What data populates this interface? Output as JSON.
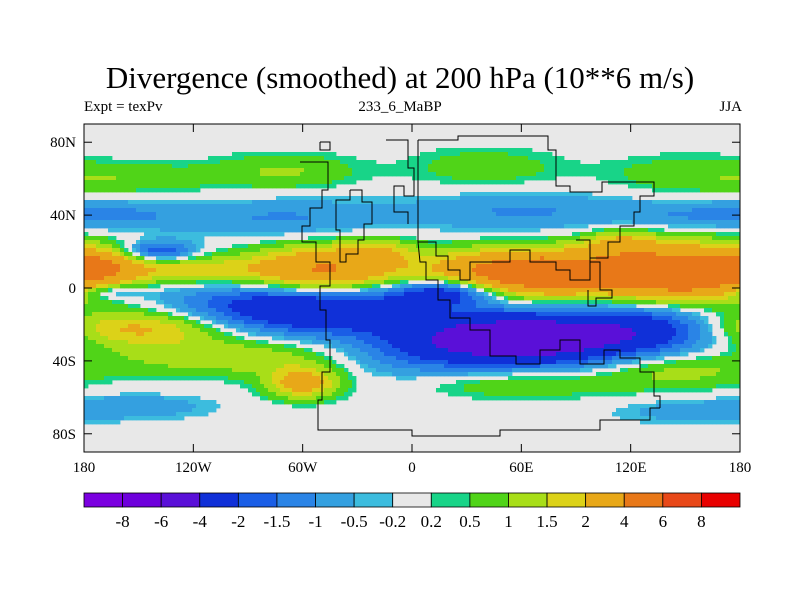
{
  "chart_data": {
    "type": "heatmap",
    "title": "Divergence (smoothed) at 200 hPa (10**6 m/s)",
    "subtitle_left": "Expt = texPv",
    "subtitle_center": "233_6_MaBP",
    "subtitle_right": "JJA",
    "xlim": [
      -180,
      180
    ],
    "ylim": [
      -90,
      90
    ],
    "x_ticks": [
      {
        "value": -180,
        "label": "180"
      },
      {
        "value": -120,
        "label": "120W"
      },
      {
        "value": -60,
        "label": "60W"
      },
      {
        "value": 0,
        "label": "0"
      },
      {
        "value": 60,
        "label": "60E"
      },
      {
        "value": 120,
        "label": "120E"
      },
      {
        "value": 180,
        "label": "180"
      }
    ],
    "y_ticks": [
      {
        "value": 80,
        "label": "80N"
      },
      {
        "value": 40,
        "label": "40N"
      },
      {
        "value": 0,
        "label": "0"
      },
      {
        "value": -40,
        "label": "40S"
      },
      {
        "value": -80,
        "label": "80S"
      }
    ],
    "colorbar": {
      "colors": [
        "#7b00e0",
        "#6e00dc",
        "#5a10d8",
        "#1030d8",
        "#1a5ee6",
        "#2a84e6",
        "#34a0e0",
        "#3cbcde",
        "#e8e8e8",
        "#18d488",
        "#50d418",
        "#a8de18",
        "#dcd218",
        "#e8a818",
        "#e87818",
        "#e84818",
        "#e80000"
      ],
      "labels": [
        "-8",
        "-6",
        "-4",
        "-2",
        "-1.5",
        "-1",
        "-0.5",
        "-0.2",
        "0.2",
        "0.5",
        "1",
        "1.5",
        "2",
        "4",
        "6",
        "8"
      ]
    },
    "field_blobs": [
      {
        "lon": -150,
        "lat": 60,
        "rlon": 32,
        "rlat": 6,
        "v": 0.6
      },
      {
        "lon": -70,
        "lat": 64,
        "rlon": 28,
        "rlat": 7,
        "v": 0.8
      },
      {
        "lon": 40,
        "lat": 66,
        "rlon": 30,
        "rlat": 8,
        "v": 0.6
      },
      {
        "lon": 150,
        "lat": 62,
        "rlon": 32,
        "rlat": 8,
        "v": 0.6
      },
      {
        "lon": -160,
        "lat": 40,
        "rlon": 30,
        "rlat": 6,
        "v": -0.7
      },
      {
        "lon": -70,
        "lat": 38,
        "rlon": 40,
        "rlat": 8,
        "v": -0.8
      },
      {
        "lon": 60,
        "lat": 42,
        "rlon": 45,
        "rlat": 8,
        "v": -0.8
      },
      {
        "lon": 150,
        "lat": 40,
        "rlon": 30,
        "rlat": 6,
        "v": -0.6
      },
      {
        "lon": -140,
        "lat": 20,
        "rlon": 14,
        "rlat": 4,
        "v": -2.0
      },
      {
        "lon": -170,
        "lat": 12,
        "rlon": 18,
        "rlat": 7,
        "v": 1.8
      },
      {
        "lon": -120,
        "lat": 10,
        "rlon": 25,
        "rlat": 5,
        "v": 1.4
      },
      {
        "lon": -50,
        "lat": 8,
        "rlon": 30,
        "rlat": 10,
        "v": 3.5
      },
      {
        "lon": 65,
        "lat": 8,
        "rlon": 38,
        "rlat": 9,
        "v": 4.5
      },
      {
        "lon": 150,
        "lat": 8,
        "rlon": 32,
        "rlat": 11,
        "v": 4.2
      },
      {
        "lon": 115,
        "lat": 25,
        "rlon": 14,
        "rlat": 5,
        "v": 1.4
      },
      {
        "lon": -20,
        "lat": 20,
        "rlon": 14,
        "rlat": 5,
        "v": 1.2
      },
      {
        "lon": -165,
        "lat": -2,
        "rlon": 14,
        "rlat": 3,
        "v": -1.2
      },
      {
        "lon": -55,
        "lat": -10,
        "rlon": 45,
        "rlat": 10,
        "v": -3.5
      },
      {
        "lon": 20,
        "lat": -2,
        "rlon": 20,
        "rlat": 5,
        "v": -2.5
      },
      {
        "lon": 60,
        "lat": -28,
        "rlon": 40,
        "rlat": 10,
        "v": -4.5
      },
      {
        "lon": 130,
        "lat": -22,
        "rlon": 30,
        "rlat": 10,
        "v": -2.0
      },
      {
        "lon": -150,
        "lat": -22,
        "rlon": 35,
        "rlat": 7,
        "v": 2.0
      },
      {
        "lon": -100,
        "lat": -38,
        "rlon": 45,
        "rlat": 7,
        "v": 1.2
      },
      {
        "lon": -60,
        "lat": -52,
        "rlon": 14,
        "rlat": 6,
        "v": 2.3
      },
      {
        "lon": 60,
        "lat": -52,
        "rlon": 40,
        "rlat": 6,
        "v": 0.8
      },
      {
        "lon": 145,
        "lat": -45,
        "rlon": 30,
        "rlat": 7,
        "v": 1.0
      },
      {
        "lon": -150,
        "lat": -65,
        "rlon": 30,
        "rlat": 5,
        "v": -0.6
      },
      {
        "lon": 150,
        "lat": -68,
        "rlon": 30,
        "rlat": 5,
        "v": -0.5
      },
      {
        "lon": 0,
        "lat": -35,
        "rlon": 30,
        "rlat": 10,
        "v": -0.9
      }
    ]
  }
}
